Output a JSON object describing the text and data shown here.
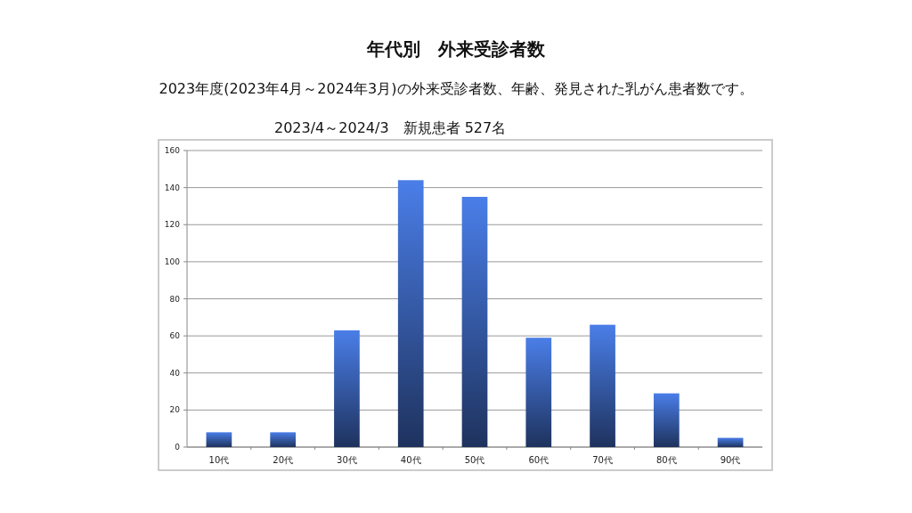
{
  "chart_data": {
    "type": "bar",
    "title": "年代別　外来受診者数",
    "subtitle": "2023年度(2023年4月～2024年3月)の外来受診者数、年齢、発見された乳がん患者数です。",
    "annotations": [
      "2023/4～2024/3　新規患者 527名"
    ],
    "categories": [
      "10代",
      "20代",
      "30代",
      "40代",
      "50代",
      "60代",
      "70代",
      "80代",
      "90代"
    ],
    "values": [
      8,
      8,
      63,
      144,
      135,
      59,
      66,
      29,
      5
    ],
    "color": "#4a7ee8",
    "ylim": [
      0,
      160
    ],
    "yticks": [
      0,
      20,
      40,
      60,
      80,
      100,
      120,
      140,
      160
    ],
    "grid": "y"
  }
}
